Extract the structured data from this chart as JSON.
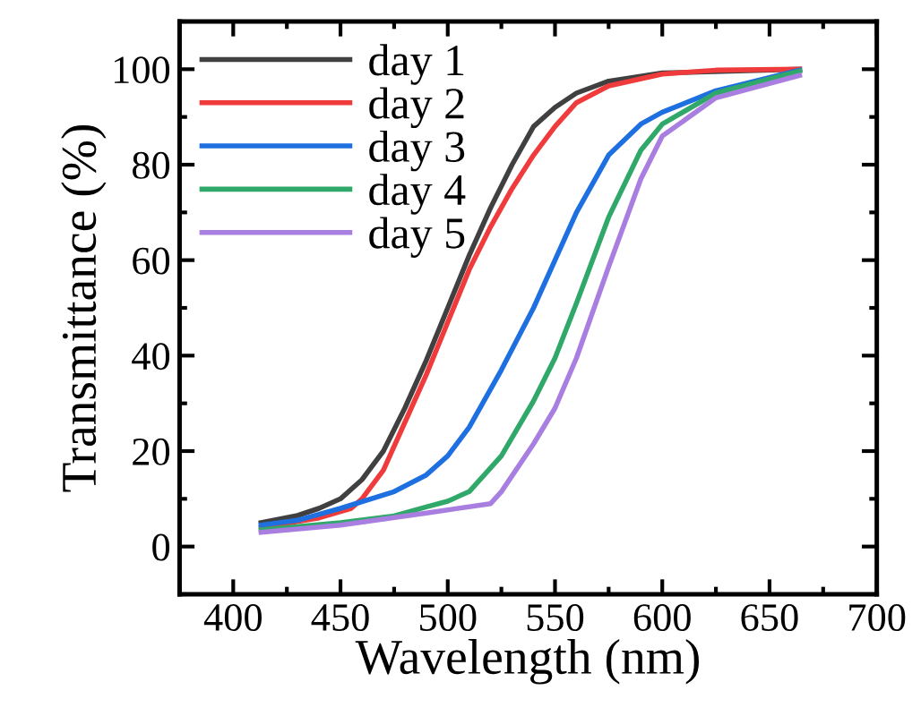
{
  "chart_data": {
    "type": "line",
    "xlabel": "Wavelength (nm)",
    "ylabel": "Transmittance (%)",
    "xlim": [
      375,
      700
    ],
    "xticks": [
      400,
      450,
      500,
      550,
      600,
      650,
      700
    ],
    "ylim": [
      -10,
      110
    ],
    "yticks": [
      0,
      20,
      40,
      60,
      80,
      100
    ],
    "grid": false,
    "legend": "top left",
    "marker": "none",
    "line_style": "solid",
    "series": [
      {
        "name": "day 1",
        "color": "#404040",
        "x": [
          413,
          430,
          440,
          450,
          460,
          470,
          480,
          490,
          500,
          510,
          520,
          530,
          540,
          550,
          560,
          575,
          600,
          664
        ],
        "values": [
          5,
          6.5,
          8,
          10,
          14,
          20,
          29,
          39,
          50,
          61,
          71,
          80,
          88,
          92,
          95,
          97.5,
          99.2,
          100
        ]
      },
      {
        "name": "day 2",
        "color": "#ef3b3b",
        "x": [
          413,
          440,
          455,
          460,
          470,
          480,
          490,
          500,
          510,
          520,
          530,
          540,
          550,
          560,
          575,
          600,
          625,
          664
        ],
        "values": [
          4,
          6,
          8,
          10,
          16,
          26,
          36,
          47,
          58,
          67,
          75,
          82,
          88,
          93,
          96.5,
          99,
          99.8,
          100
        ]
      },
      {
        "name": "day 3",
        "color": "#1e6fe0",
        "x": [
          413,
          430,
          450,
          475,
          490,
          500,
          510,
          525,
          540,
          550,
          560,
          575,
          590,
          600,
          625,
          664
        ],
        "values": [
          4.5,
          5.5,
          8,
          11.5,
          15,
          19,
          25,
          37,
          50,
          60,
          70,
          82,
          88.5,
          91,
          95.5,
          99.8
        ]
      },
      {
        "name": "day 4",
        "color": "#2fa86a",
        "x": [
          413,
          450,
          475,
          490,
          500,
          510,
          525,
          540,
          550,
          560,
          575,
          590,
          600,
          625,
          664
        ],
        "values": [
          3.5,
          5,
          6.4,
          8.3,
          9.5,
          11.5,
          19,
          30.5,
          39.5,
          51,
          69,
          83,
          88.5,
          95,
          99.6
        ]
      },
      {
        "name": "day 5",
        "color": "#a87fe0",
        "x": [
          413,
          450,
          490,
          520,
          525,
          540,
          550,
          560,
          575,
          590,
          600,
          625,
          664
        ],
        "values": [
          3,
          4.5,
          7,
          9,
          11.5,
          21.5,
          29,
          39.5,
          58.6,
          77,
          86,
          94,
          98.7
        ]
      }
    ]
  }
}
